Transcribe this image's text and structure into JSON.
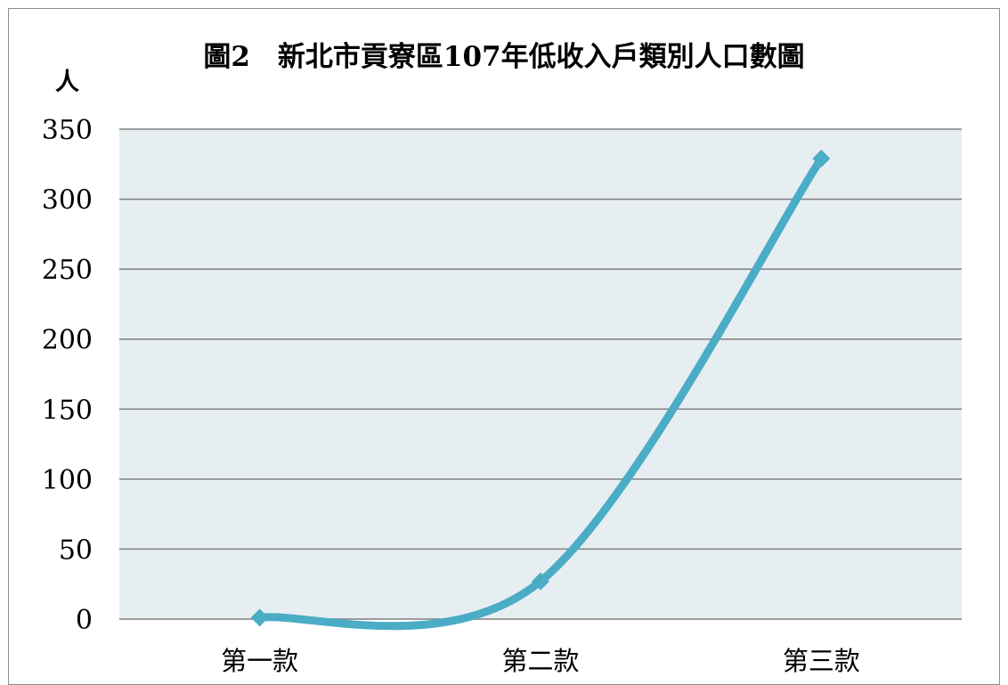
{
  "chart_data": {
    "type": "line",
    "title": "圖2　新北市貢寮區107年低收入戶類別人口數圖",
    "ylabel": "人",
    "xlabel": "",
    "categories": [
      "第一款",
      "第二款",
      "第三款"
    ],
    "series": [
      {
        "values": [
          1,
          27,
          329
        ]
      }
    ],
    "yticks": [
      "0",
      "50",
      "100",
      "150",
      "200",
      "250",
      "300",
      "350"
    ],
    "ylim": [
      0,
      350
    ],
    "grid": true,
    "smooth": true,
    "legend": "none",
    "colors": {
      "line": "#4bacc6",
      "plot_background": "#e7eef2",
      "gridline": "#7f7f7f"
    },
    "marker": "diamond"
  }
}
